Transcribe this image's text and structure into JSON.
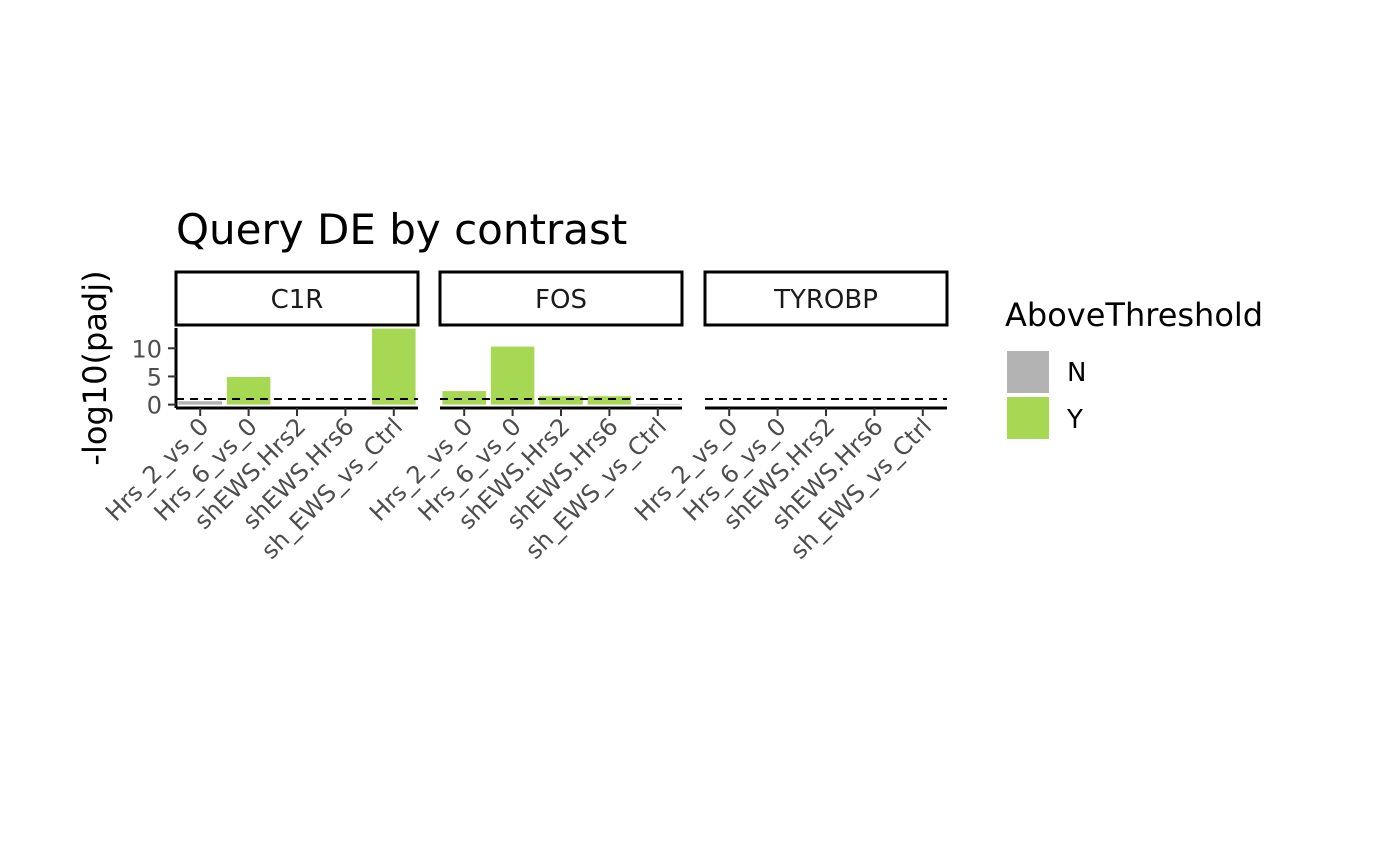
{
  "chart_data": {
    "type": "bar",
    "title": "Query DE by contrast",
    "ylabel": "-log10(padj)",
    "xlabel": "",
    "ylim": [
      -0.6,
      13.6
    ],
    "yticks": [
      0,
      5,
      10
    ],
    "threshold": 1.0,
    "categories": [
      "Hrs_2_vs_0",
      "Hrs_6_vs_0",
      "shEWS.Hrs2",
      "shEWS.Hrs6",
      "sh_EWS_vs_Ctrl"
    ],
    "facets": [
      {
        "name": "C1R",
        "values": [
          0.6,
          4.9,
          0.0,
          0.0,
          13.5
        ],
        "above": [
          "N",
          "Y",
          "N",
          "N",
          "Y"
        ]
      },
      {
        "name": "FOS",
        "values": [
          2.4,
          10.3,
          1.5,
          1.5,
          0.1
        ],
        "above": [
          "Y",
          "Y",
          "Y",
          "Y",
          "N"
        ]
      },
      {
        "name": "TYROBP",
        "values": [
          0.0,
          0.0,
          0.0,
          0.0,
          0.0
        ],
        "above": [
          "N",
          "N",
          "N",
          "N",
          "N"
        ]
      }
    ],
    "legend": {
      "title": "AboveThreshold",
      "placement": "right",
      "items": [
        {
          "label": "N",
          "color": "#b3b3b3"
        },
        {
          "label": "Y",
          "color": "#a6d854"
        }
      ]
    },
    "grid": false
  }
}
